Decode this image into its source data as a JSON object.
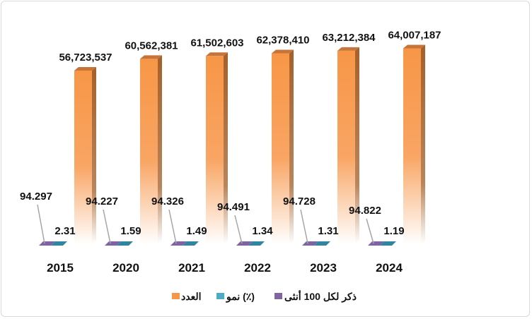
{
  "chart_data": {
    "type": "bar",
    "title": "",
    "categories": [
      "2015",
      "2020",
      "2021",
      "2022",
      "2023",
      "2024"
    ],
    "series": [
      {
        "name": "العدد",
        "color": "#f79646",
        "values": [
          56723537,
          60562381,
          61502603,
          62378410,
          63212384,
          64007187
        ],
        "labels": [
          "56,723,537",
          "60,562,381",
          "61,502,603",
          "62,378,410",
          "63,212,384",
          "64,007,187"
        ]
      },
      {
        "name": "نمو (٪)",
        "color": "#4bacc6",
        "values": [
          2.31,
          1.59,
          1.49,
          1.34,
          1.31,
          1.19
        ],
        "labels": [
          "2.31",
          "1.59",
          "1.49",
          "1.34",
          "1.31",
          "1.19"
        ]
      },
      {
        "name": "ذكر لكل 100 أنثى",
        "color": "#8064a2",
        "values": [
          94.297,
          94.227,
          94.326,
          94.491,
          94.728,
          94.822
        ],
        "labels": [
          "94.297",
          "94.227",
          "94.326",
          "94.491",
          "94.728",
          "94.822"
        ]
      }
    ],
    "legend_position": "bottom",
    "grid": false
  }
}
